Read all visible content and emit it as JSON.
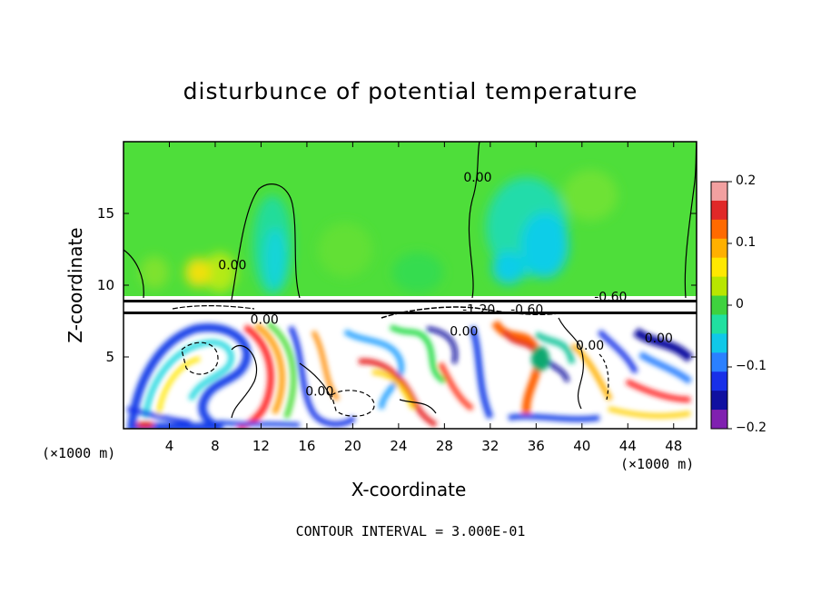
{
  "chart_data": {
    "type": "heatmap",
    "title": "disturbunce of potential temperature",
    "xlabel": "X-coordinate",
    "ylabel": "Z-coordinate",
    "x_unit_label": "(×1000 m)",
    "x_ticks": [
      4,
      8,
      12,
      16,
      20,
      24,
      28,
      32,
      36,
      40,
      44,
      48
    ],
    "y_ticks": [
      5,
      10,
      15
    ],
    "xlim": [
      0,
      50
    ],
    "ylim": [
      0,
      20
    ],
    "colorbar": {
      "ticks": [
        0.2,
        0.1,
        0,
        -0.1,
        -0.2
      ],
      "tick_labels": [
        "0.2",
        "0.1",
        "0",
        "−0.1",
        "−0.2"
      ],
      "range": [
        -0.2,
        0.2
      ],
      "colors": [
        "#f2a0a0",
        "#e02828",
        "#ff6a00",
        "#ffb000",
        "#ffe800",
        "#b8e600",
        "#3ed23e",
        "#20e0a0",
        "#10c8e8",
        "#2a80ff",
        "#1830e8",
        "#1010a0",
        "#8020b0"
      ]
    },
    "contour_labels": [
      {
        "text": "0.00",
        "x": 30.9,
        "z": 17.2
      },
      {
        "text": "0.00",
        "x": 9.5,
        "z": 11.1
      },
      {
        "text": "-0.60",
        "x": 42.5,
        "z": 8.9
      },
      {
        "text": "-1.20",
        "x": 31.0,
        "z": 8.0
      },
      {
        "text": "-0.60",
        "x": 35.2,
        "z": 8.0
      },
      {
        "text": "0.00",
        "x": 12.3,
        "z": 7.3
      },
      {
        "text": "0.00",
        "x": 29.7,
        "z": 6.5
      },
      {
        "text": "0.00",
        "x": 46.7,
        "z": 6.0
      },
      {
        "text": "0.00",
        "x": 40.7,
        "z": 5.5
      },
      {
        "text": "0.00",
        "x": 17.1,
        "z": 2.3
      }
    ],
    "contour_interval": "CONTOUR INTERVAL = 3.000E-01",
    "grid": false
  }
}
